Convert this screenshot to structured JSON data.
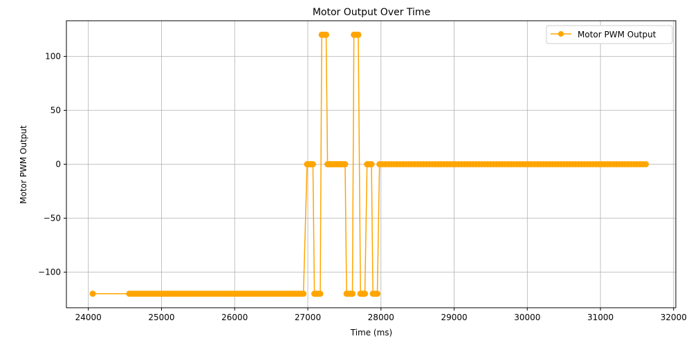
{
  "chart_data": {
    "type": "line",
    "title": "Motor Output Over Time",
    "xlabel": "Time (ms)",
    "ylabel": "Motor PWM Output",
    "xlim": [
      23700,
      32030
    ],
    "ylim": [
      -133,
      133
    ],
    "xticks": [
      24000,
      25000,
      26000,
      27000,
      28000,
      29000,
      30000,
      31000,
      32000
    ],
    "yticks": [
      -100,
      -50,
      0,
      50,
      100
    ],
    "ytick_labels": [
      "−100",
      "−50",
      "0",
      "50",
      "100"
    ],
    "grid": true,
    "legend_position": "top-right",
    "series": [
      {
        "name": "Motor PWM Output",
        "color": "#FFA500",
        "marker": "circle",
        "segments": [
          {
            "x_start": 24060,
            "x_end": 24060,
            "step": 50,
            "value": -120
          },
          {
            "x_start": 24560,
            "x_end": 26970,
            "step": 35,
            "value": -120
          },
          {
            "x_start": 26990,
            "x_end": 27070,
            "step": 20,
            "value": 0
          },
          {
            "x_start": 27090,
            "x_end": 27170,
            "step": 20,
            "value": -120
          },
          {
            "x_start": 27190,
            "x_end": 27250,
            "step": 20,
            "value": 120
          },
          {
            "x_start": 27270,
            "x_end": 27510,
            "step": 20,
            "value": 0
          },
          {
            "x_start": 27530,
            "x_end": 27610,
            "step": 20,
            "value": -120
          },
          {
            "x_start": 27630,
            "x_end": 27700,
            "step": 20,
            "value": 120
          },
          {
            "x_start": 27720,
            "x_end": 27790,
            "step": 20,
            "value": -120
          },
          {
            "x_start": 27810,
            "x_end": 27870,
            "step": 20,
            "value": 0
          },
          {
            "x_start": 27890,
            "x_end": 27960,
            "step": 20,
            "value": -120
          },
          {
            "x_start": 27980,
            "x_end": 31650,
            "step": 40,
            "value": 0
          }
        ]
      }
    ]
  }
}
